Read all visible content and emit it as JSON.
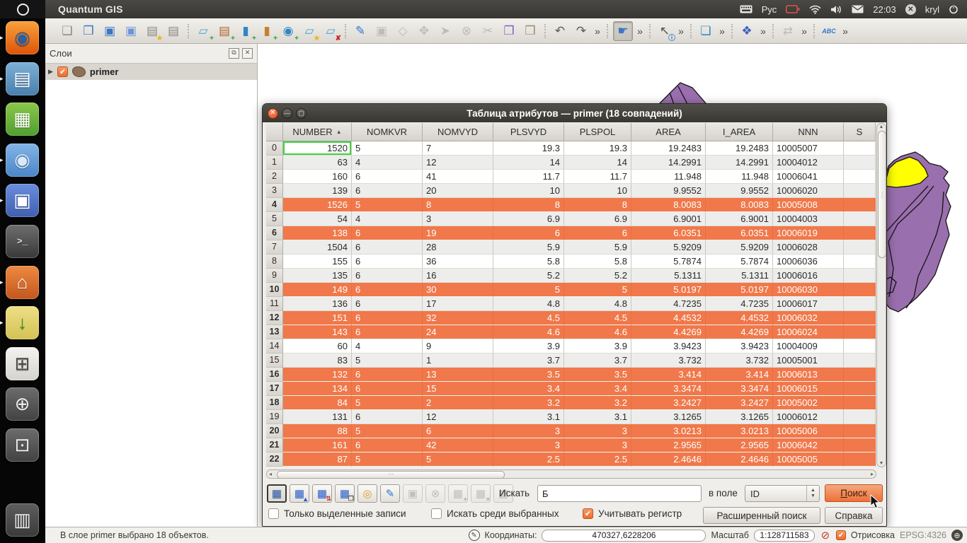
{
  "top_bar": {
    "app_title": "Quantum GIS",
    "keyboard_layout": "Рус",
    "time": "22:03",
    "user": "kryl",
    "icons": [
      "keyboard-icon",
      "battery-icon",
      "wifi-icon",
      "volume-icon",
      "mail-icon",
      "user-avatar-icon",
      "power-icon"
    ]
  },
  "launcher": {
    "items": [
      {
        "name": "firefox",
        "glyph": "◉",
        "glyph_color": "#2d5e9e",
        "bg": [
          "#f9a13c",
          "#dd5408"
        ],
        "running": true
      },
      {
        "name": "libreoffice-writer",
        "glyph": "▤",
        "glyph_color": "#ffffff",
        "bg": [
          "#7fb0d6",
          "#477fae"
        ],
        "running": true
      },
      {
        "name": "libreoffice-calc",
        "glyph": "▦",
        "glyph_color": "#ffffff",
        "bg": [
          "#8bc74c",
          "#4f9e2f"
        ],
        "running": false
      },
      {
        "name": "chromium",
        "glyph": "◉",
        "glyph_color": "#dce9f7",
        "bg": [
          "#84b4e6",
          "#4a86c8"
        ],
        "running": true
      },
      {
        "name": "floppy-disk-app",
        "glyph": "▣",
        "glyph_color": "#ffffff",
        "bg": [
          "#6c8cdc",
          "#3f5fb0"
        ],
        "running": true
      },
      {
        "name": "terminal",
        "glyph": ">_",
        "glyph_color": "#dddddd",
        "bg": [
          "#6e6e6e",
          "#383838"
        ],
        "running": false,
        "mono": true
      },
      {
        "name": "home-folder",
        "glyph": "⌂",
        "glyph_color": "#ffffff",
        "bg": [
          "#ed8a42",
          "#c4561d"
        ],
        "running": true
      },
      {
        "name": "software-package",
        "glyph": "↓",
        "glyph_color": "#3f8f2f",
        "bg": [
          "#eedf86",
          "#d2c254"
        ],
        "running": true
      },
      {
        "name": "workspace-switcher",
        "glyph": "⊞",
        "glyph_color": "#4a4a4a",
        "bg": [
          "#f4f3f1",
          "#d5d3cf"
        ],
        "running": false
      },
      {
        "name": "zoom-in",
        "glyph": "⊕",
        "glyph_color": "#eeeeee",
        "bg": [
          "#6c6c6c",
          "#424242"
        ],
        "running": false
      },
      {
        "name": "zoom-page",
        "glyph": "⊡",
        "glyph_color": "#eeeeee",
        "bg": [
          "#6c6c6c",
          "#424242"
        ],
        "running": false
      },
      {
        "name": "trash",
        "glyph": "▥",
        "glyph_color": "#eeeeee",
        "bg": [
          "#5e5e5e",
          "#3a3a3a"
        ],
        "running": false,
        "trash": true
      }
    ]
  },
  "toolbar": {
    "groups": [
      [
        {
          "name": "new-project-icon",
          "glyph": "❑",
          "color": "#8a8781"
        },
        {
          "name": "open-project-icon",
          "glyph": "❒",
          "color": "#3a76c4"
        },
        {
          "name": "save-project-icon",
          "glyph": "▣",
          "color": "#3a76c4"
        },
        {
          "name": "save-project-as-icon",
          "glyph": "▣",
          "color": "#6f94d6"
        },
        {
          "name": "new-print-composer-icon",
          "glyph": "▤",
          "color": "#8a8781",
          "badge": "★",
          "badge_color": "#e8b820"
        },
        {
          "name": "print-icon",
          "glyph": "▤",
          "color": "#8a8781"
        }
      ],
      [
        {
          "name": "add-vector-layer-icon",
          "glyph": "▱",
          "color": "#4aa3d8",
          "badge": "+",
          "badge_color": "#2f9e2f"
        },
        {
          "name": "add-raster-layer-icon",
          "glyph": "▤",
          "color": "#b0622a",
          "badge": "+",
          "badge_color": "#2f9e2f"
        },
        {
          "name": "add-postgis-layer-icon",
          "glyph": "▮",
          "color": "#2e86c1",
          "badge": "+",
          "badge_color": "#2f9e2f"
        },
        {
          "name": "add-spatialite-layer-icon",
          "glyph": "▮",
          "color": "#c77f2e",
          "badge": "+",
          "badge_color": "#2f9e2f"
        },
        {
          "name": "add-wms-layer-icon",
          "glyph": "◉",
          "color": "#2e86c1",
          "badge": "+",
          "badge_color": "#2f9e2f"
        },
        {
          "name": "new-shapefile-layer-icon",
          "glyph": "▱",
          "color": "#4aa3d8",
          "badge": "★",
          "badge_color": "#e8b820"
        },
        {
          "name": "remove-layer-icon",
          "glyph": "▱",
          "color": "#4aa3d8",
          "badge": "✘",
          "badge_color": "#cc2222"
        }
      ],
      [
        {
          "name": "toggle-editing-icon",
          "glyph": "✎",
          "color": "#2e77d0"
        },
        {
          "name": "save-edits-icon",
          "glyph": "▣",
          "color": "#8a8781",
          "disabled": true
        },
        {
          "name": "capture-polygon-icon",
          "glyph": "◇",
          "color": "#8a8781",
          "disabled": true
        },
        {
          "name": "move-feature-icon",
          "glyph": "✥",
          "color": "#8a8781",
          "disabled": true
        },
        {
          "name": "node-tool-icon",
          "glyph": "➤",
          "color": "#8a8781",
          "disabled": true
        },
        {
          "name": "delete-selected-icon",
          "glyph": "⊗",
          "color": "#8a8781",
          "disabled": true
        },
        {
          "name": "cut-features-icon",
          "glyph": "✂",
          "color": "#8a8781",
          "disabled": true
        },
        {
          "name": "copy-features-icon",
          "glyph": "❐",
          "color": "#7a5fc0"
        },
        {
          "name": "paste-features-icon",
          "glyph": "❒",
          "color": "#9a8a6a"
        }
      ],
      [
        {
          "name": "undo-icon",
          "glyph": "↶",
          "color": "#5e5b56"
        },
        {
          "name": "redo-icon",
          "glyph": "↷",
          "color": "#5e5b56"
        },
        {
          "name": "overflow-chevron",
          "glyph": "»",
          "chevron": true
        }
      ],
      [
        {
          "name": "pan-map-icon",
          "glyph": "☛",
          "color": "#3a76c4",
          "active": true
        },
        {
          "name": "overflow-chevron",
          "glyph": "»",
          "chevron": true
        }
      ],
      [
        {
          "name": "identify-features-icon",
          "glyph": "↖",
          "color": "#55524d",
          "badge": "ⓘ",
          "badge_color": "#2e77d0"
        },
        {
          "name": "overflow-chevron",
          "glyph": "»",
          "chevron": true
        }
      ],
      [
        {
          "name": "measure-icon",
          "glyph": "❏",
          "color": "#2e86c1"
        },
        {
          "name": "overflow-chevron",
          "glyph": "»",
          "chevron": true
        }
      ],
      [
        {
          "name": "new-bookmark-icon",
          "glyph": "❖",
          "color": "#3a5fc0"
        },
        {
          "name": "overflow-chevron",
          "glyph": "»",
          "chevron": true
        }
      ],
      [
        {
          "name": "map-flip-icon",
          "glyph": "⇄",
          "color": "#8a8781",
          "disabled": true
        },
        {
          "name": "overflow-chevron",
          "glyph": "»",
          "chevron": true
        }
      ],
      [
        {
          "name": "labeling-icon",
          "glyph": "ABC",
          "color": "#2e77d0",
          "text_icon": true
        },
        {
          "name": "overflow-chevron",
          "glyph": "»",
          "chevron": true
        }
      ]
    ]
  },
  "layers_panel": {
    "title": "Слои",
    "layers": [
      {
        "name": "primer",
        "checked": true
      }
    ]
  },
  "dialog": {
    "title": "Таблица атрибутов — primer (18 совпадений)",
    "table": {
      "columns": [
        {
          "label": "NUMBER",
          "sorted": "asc"
        },
        {
          "label": "NOMKVR"
        },
        {
          "label": "NOMVYD"
        },
        {
          "label": "PLSVYD"
        },
        {
          "label": "PLSPOL"
        },
        {
          "label": "AREA"
        },
        {
          "label": "I_AREA"
        },
        {
          "label": "NNN"
        },
        {
          "label": "S"
        }
      ],
      "rows": [
        {
          "n": "0",
          "selected": false,
          "current_cell": 0,
          "values": [
            "1520",
            "5",
            "7",
            "19.3",
            "19.3",
            "19.2483",
            "19.2483",
            "10005007",
            ""
          ]
        },
        {
          "n": "1",
          "selected": false,
          "values": [
            "63",
            "4",
            "12",
            "14",
            "14",
            "14.2991",
            "14.2991",
            "10004012",
            ""
          ]
        },
        {
          "n": "2",
          "selected": false,
          "values": [
            "160",
            "6",
            "41",
            "11.7",
            "11.7",
            "11.948",
            "11.948",
            "10006041",
            ""
          ]
        },
        {
          "n": "3",
          "selected": false,
          "values": [
            "139",
            "6",
            "20",
            "10",
            "10",
            "9.9552",
            "9.9552",
            "10006020",
            ""
          ]
        },
        {
          "n": "4",
          "selected": true,
          "values": [
            "1526",
            "5",
            "8",
            "8",
            "8",
            "8.0083",
            "8.0083",
            "10005008",
            ""
          ]
        },
        {
          "n": "5",
          "selected": false,
          "values": [
            "54",
            "4",
            "3",
            "6.9",
            "6.9",
            "6.9001",
            "6.9001",
            "10004003",
            ""
          ]
        },
        {
          "n": "6",
          "selected": true,
          "values": [
            "138",
            "6",
            "19",
            "6",
            "6",
            "6.0351",
            "6.0351",
            "10006019",
            ""
          ]
        },
        {
          "n": "7",
          "selected": false,
          "values": [
            "1504",
            "6",
            "28",
            "5.9",
            "5.9",
            "5.9209",
            "5.9209",
            "10006028",
            ""
          ]
        },
        {
          "n": "8",
          "selected": false,
          "values": [
            "155",
            "6",
            "36",
            "5.8",
            "5.8",
            "5.7874",
            "5.7874",
            "10006036",
            ""
          ]
        },
        {
          "n": "9",
          "selected": false,
          "values": [
            "135",
            "6",
            "16",
            "5.2",
            "5.2",
            "5.1311",
            "5.1311",
            "10006016",
            ""
          ]
        },
        {
          "n": "10",
          "selected": true,
          "values": [
            "149",
            "6",
            "30",
            "5",
            "5",
            "5.0197",
            "5.0197",
            "10006030",
            ""
          ]
        },
        {
          "n": "11",
          "selected": false,
          "values": [
            "136",
            "6",
            "17",
            "4.8",
            "4.8",
            "4.7235",
            "4.7235",
            "10006017",
            ""
          ]
        },
        {
          "n": "12",
          "selected": true,
          "values": [
            "151",
            "6",
            "32",
            "4.5",
            "4.5",
            "4.4532",
            "4.4532",
            "10006032",
            ""
          ]
        },
        {
          "n": "13",
          "selected": true,
          "values": [
            "143",
            "6",
            "24",
            "4.6",
            "4.6",
            "4.4269",
            "4.4269",
            "10006024",
            ""
          ]
        },
        {
          "n": "14",
          "selected": false,
          "values": [
            "60",
            "4",
            "9",
            "3.9",
            "3.9",
            "3.9423",
            "3.9423",
            "10004009",
            ""
          ]
        },
        {
          "n": "15",
          "selected": false,
          "values": [
            "83",
            "5",
            "1",
            "3.7",
            "3.7",
            "3.732",
            "3.732",
            "10005001",
            ""
          ]
        },
        {
          "n": "16",
          "selected": true,
          "values": [
            "132",
            "6",
            "13",
            "3.5",
            "3.5",
            "3.414",
            "3.414",
            "10006013",
            ""
          ]
        },
        {
          "n": "17",
          "selected": true,
          "values": [
            "134",
            "6",
            "15",
            "3.4",
            "3.4",
            "3.3474",
            "3.3474",
            "10006015",
            ""
          ]
        },
        {
          "n": "18",
          "selected": true,
          "values": [
            "84",
            "5",
            "2",
            "3.2",
            "3.2",
            "3.2427",
            "3.2427",
            "10005002",
            ""
          ]
        },
        {
          "n": "19",
          "selected": false,
          "values": [
            "131",
            "6",
            "12",
            "3.1",
            "3.1",
            "3.1265",
            "3.1265",
            "10006012",
            ""
          ]
        },
        {
          "n": "20",
          "selected": true,
          "values": [
            "88",
            "5",
            "6",
            "3",
            "3",
            "3.0213",
            "3.0213",
            "10005006",
            ""
          ]
        },
        {
          "n": "21",
          "selected": true,
          "values": [
            "161",
            "6",
            "42",
            "3",
            "3",
            "2.9565",
            "2.9565",
            "10006042",
            ""
          ]
        },
        {
          "n": "22",
          "selected": true,
          "values": [
            "87",
            "5",
            "5",
            "2.5",
            "2.5",
            "2.4646",
            "2.4646",
            "10005005",
            ""
          ]
        }
      ]
    },
    "toolbar_buttons": [
      {
        "name": "deselect-all-button",
        "glyph": "▦",
        "color": "#1f4fa0",
        "pressed": true
      },
      {
        "name": "move-selected-to-top-button",
        "glyph": "▦",
        "color": "#2458c8",
        "badge": "▲",
        "badge_color": "#2458c8"
      },
      {
        "name": "invert-selection-button",
        "glyph": "▦",
        "color": "#2458c8",
        "badge": "⇅",
        "badge_color": "#c0392b"
      },
      {
        "name": "copy-rows-button",
        "glyph": "▦",
        "color": "#2458c8",
        "badge": "❐",
        "badge_color": "#55524d"
      },
      {
        "name": "zoom-to-selected-button",
        "glyph": "◎",
        "color": "#d89c20"
      },
      {
        "name": "toggle-editing-button",
        "glyph": "✎",
        "color": "#2e77d0"
      },
      {
        "name": "save-edits-button",
        "glyph": "▣",
        "color": "#8a8781",
        "disabled": true
      },
      {
        "name": "delete-features-button",
        "glyph": "⊗",
        "color": "#8a8781",
        "disabled": true
      },
      {
        "name": "new-column-button",
        "glyph": "▦",
        "color": "#8a8781",
        "badge": "+",
        "badge_color": "#55524d",
        "disabled": true
      },
      {
        "name": "delete-column-button",
        "glyph": "▦",
        "color": "#8a8781",
        "badge": "×",
        "badge_color": "#55524d",
        "disabled": true
      },
      {
        "name": "field-calculator-button",
        "glyph": "▦",
        "color": "#8a8781",
        "disabled": true
      }
    ],
    "search": {
      "label": "Искать",
      "value": "Б",
      "in_field_label": "в поле",
      "field_value": "ID",
      "search_button": "Поиск"
    },
    "checkboxes": [
      {
        "name": "only-selected-records",
        "label": "Только выделенные записи",
        "checked": false
      },
      {
        "name": "search-within-selected",
        "label": "Искать среди выбранных",
        "checked": false
      },
      {
        "name": "case-sensitive",
        "label": "Учитывать регистр",
        "checked": true
      }
    ],
    "buttons": {
      "advanced_search": "Расширенный поиск",
      "help": "Справка"
    }
  },
  "status_bar": {
    "selection_text": "В слое primer выбрано 18 объектов.",
    "coordinates_label": "Координаты:",
    "coordinates_value": "470327,6228206",
    "scale_label": "Масштаб",
    "scale_value": "1:128711583",
    "render_label": "Отрисовка",
    "render_checked": true,
    "crs": "EPSG:4326"
  },
  "colors": {
    "selection_orange": "#f0784a",
    "checkbox_orange": "#ee6c2f",
    "map_polygon_purple": "#9a6fae",
    "map_polygon_yellow": "#ffff00",
    "current_cell_green": "#3ed43e"
  }
}
